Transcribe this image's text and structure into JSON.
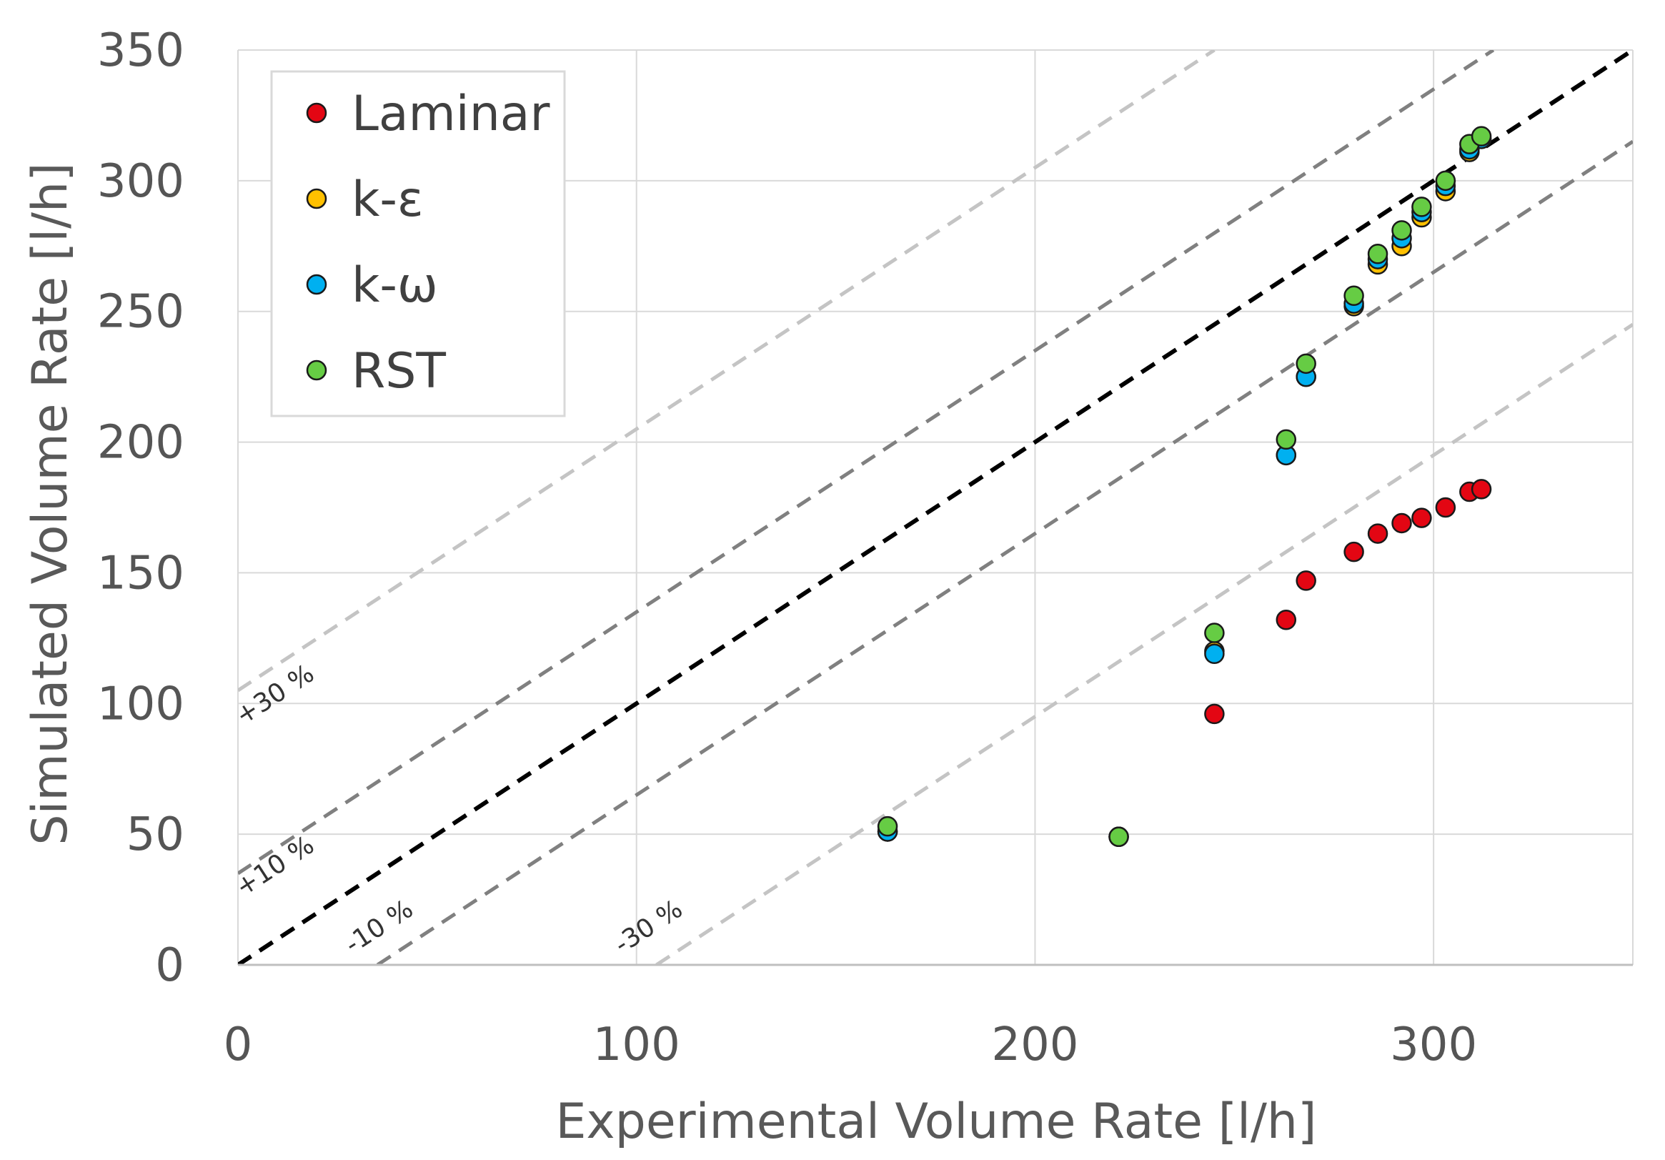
{
  "chart_data": {
    "type": "scatter",
    "xlabel": "Experimental Volume Rate [l/h]",
    "ylabel": "Simulated Volume Rate [l/h]",
    "xlim": [
      0,
      350
    ],
    "ylim": [
      0,
      350
    ],
    "x_ticks": [
      0,
      100,
      200,
      300
    ],
    "y_ticks": [
      0,
      50,
      100,
      150,
      200,
      250,
      300,
      350
    ],
    "grid": true,
    "legend_position": "top-left",
    "reference_lines": [
      {
        "label": "+30 %",
        "factor": 1.3,
        "color": "#c4c4c4"
      },
      {
        "label": "+10 %",
        "factor": 1.1,
        "color": "#808080"
      },
      {
        "label": "",
        "factor": 1.0,
        "color": "#000000"
      },
      {
        "label": "-10 %",
        "factor": 0.9,
        "color": "#808080"
      },
      {
        "label": "-30 %",
        "factor": 0.7,
        "color": "#c4c4c4"
      }
    ],
    "series": [
      {
        "name": "Laminar",
        "color": "#e30613",
        "x": [
          245,
          263,
          268,
          280,
          286,
          292,
          297,
          303,
          309,
          312
        ],
        "y": [
          96,
          132,
          147,
          158,
          165,
          169,
          171,
          175,
          181,
          182
        ]
      },
      {
        "name": "k-ε",
        "color": "#ffc000",
        "x": [
          163,
          221,
          245,
          263,
          268,
          280,
          286,
          292,
          297,
          303,
          309,
          312
        ],
        "y": [
          51,
          49,
          120,
          195,
          225,
          252,
          268,
          275,
          286,
          296,
          311,
          316
        ]
      },
      {
        "name": "k-ω",
        "color": "#00b0f0",
        "x": [
          163,
          221,
          245,
          263,
          268,
          280,
          286,
          292,
          297,
          303,
          309,
          312
        ],
        "y": [
          51,
          49,
          119,
          195,
          225,
          253,
          270,
          278,
          288,
          298,
          312,
          316
        ]
      },
      {
        "name": "RST",
        "color": "#66cc44",
        "x": [
          163,
          221,
          245,
          263,
          268,
          280,
          286,
          292,
          297,
          303,
          309,
          312
        ],
        "y": [
          53,
          49,
          127,
          201,
          230,
          256,
          272,
          281,
          290,
          300,
          314,
          317
        ]
      }
    ]
  }
}
